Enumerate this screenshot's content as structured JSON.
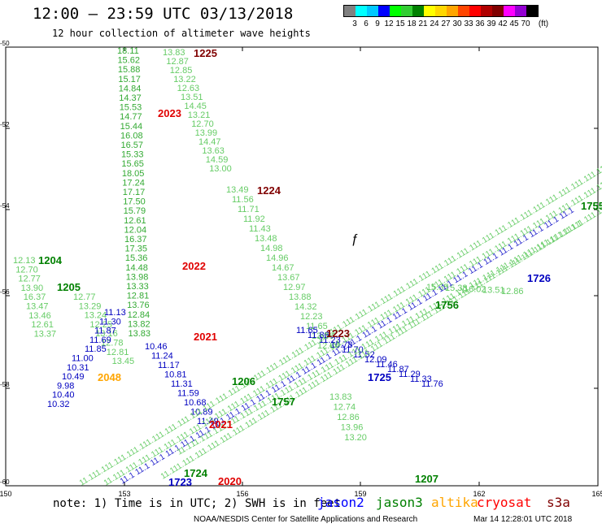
{
  "header": {
    "title": "12:00 – 23:59 UTC 03/13/2018",
    "subtitle": "12 hour collection of altimeter wave heights"
  },
  "legend": {
    "colors": [
      "#808080",
      "#00ffff",
      "#00c8ff",
      "#0000ff",
      "#00ff00",
      "#32cd32",
      "#008000",
      "#ffff00",
      "#ffd700",
      "#ffa500",
      "#ff4500",
      "#ff0000",
      "#b00000",
      "#800000",
      "#ff00ff",
      "#9400d3",
      "#000000"
    ],
    "labels": [
      "3",
      "6",
      "9",
      "12",
      "15",
      "18",
      "21",
      "24",
      "27",
      "30",
      "33",
      "36",
      "39",
      "42",
      "45",
      "70",
      "(ft)"
    ]
  },
  "axes": {
    "lat_labels": [
      "-50",
      "-52",
      "-54",
      "-56",
      "-58",
      "-60"
    ],
    "lon_labels": [
      "150",
      "153",
      "156",
      "159",
      "162",
      "165"
    ]
  },
  "tracks": [
    {
      "color": "#3a3",
      "values": [
        "18.11",
        "15.62",
        "15.88",
        "15.17",
        "14.84",
        "14.37",
        "15.53",
        "14.77",
        "15.44",
        "16.08",
        "16.57",
        "15.33",
        "15.65",
        "18.05",
        "17.24",
        "17.17",
        "17.50",
        "15.79",
        "12.61",
        "12.04",
        "16.37",
        "17.35",
        "15.36",
        "14.48",
        "13.98",
        "13.33",
        "12.81",
        "13.76",
        "12.84",
        "13.82",
        "13.83"
      ]
    },
    {
      "color": "#6c6",
      "values": [
        "13.83",
        "12.87",
        "12.85",
        "13.22",
        "12.63",
        "13.51",
        "14.45",
        "13.21",
        "12.70",
        "13.99",
        "14.47",
        "13.63",
        "14.59",
        "13.00"
      ]
    },
    {
      "color": "#6c6",
      "values": [
        "13.49",
        "11.56",
        "11.71",
        "11.92",
        "11.43",
        "13.48",
        "14.98",
        "14.96",
        "14.67",
        "13.67",
        "12.97",
        "13.88",
        "14.32",
        "12.23",
        "11.65",
        "13.36",
        "12.84"
      ]
    },
    {
      "color": "#6c6",
      "values": [
        "12.13",
        "12.70",
        "12.77",
        "13.90",
        "16.37",
        "13.47",
        "13.46",
        "12.61",
        "13.37"
      ]
    },
    {
      "color": "#6c6",
      "values": [
        "12.77",
        "13.29",
        "13.24",
        "12.25",
        "13.16",
        "12.78",
        "12.81",
        "13.45"
      ]
    },
    {
      "color": "#6c6",
      "values": [
        "13.83",
        "12.74",
        "12.86",
        "13.96",
        "13.20"
      ]
    },
    {
      "color": "#6c6",
      "values": [
        "15.35",
        "15.38",
        "16.02",
        "13.51",
        "12.86"
      ]
    }
  ],
  "blue_values": [
    "11.13",
    "11.30",
    "11.87",
    "11.69",
    "11.85",
    "11.00",
    "10.31",
    "10.49",
    "9.98",
    "10.40",
    "10.32",
    "10.46",
    "11.24",
    "11.17",
    "10.81",
    "11.31",
    "11.59",
    "10.68",
    "10.89",
    "11.49",
    "11.65",
    "11.86",
    "11.23",
    "10.78",
    "11.70",
    "11.52",
    "12.09",
    "11.46",
    "11.87",
    "11.29",
    "11.33",
    "11.76"
  ],
  "labels_time": [
    {
      "text": "1225",
      "color": "#800000"
    },
    {
      "text": "2023",
      "color": "#e00000"
    },
    {
      "text": "1224",
      "color": "#800000"
    },
    {
      "text": "1204",
      "color": "#008000"
    },
    {
      "text": "1205",
      "color": "#008000"
    },
    {
      "text": "2022",
      "color": "#e00000"
    },
    {
      "text": "2021",
      "color": "#e00000"
    },
    {
      "text": "2048",
      "color": "#ffa500"
    },
    {
      "text": "1223",
      "color": "#800000"
    },
    {
      "text": "1206",
      "color": "#008000"
    },
    {
      "text": "1757",
      "color": "#008000"
    },
    {
      "text": "1725",
      "color": "#0000c0"
    },
    {
      "text": "1726",
      "color": "#0000c0"
    },
    {
      "text": "1756",
      "color": "#008000"
    },
    {
      "text": "1755",
      "color": "#008000"
    },
    {
      "text": "2021",
      "color": "#e00000"
    },
    {
      "text": "2020",
      "color": "#e00000"
    },
    {
      "text": "1207",
      "color": "#008000"
    },
    {
      "text": "1724",
      "color": "#008000"
    },
    {
      "text": "1723",
      "color": "#0000c0"
    }
  ],
  "footer": {
    "note": "note: 1) Time is in UTC; 2) SWH is in feet",
    "missions": [
      {
        "name": "jason2",
        "color": "#0000ff"
      },
      {
        "name": "jason3",
        "color": "#008000"
      },
      {
        "name": "altika",
        "color": "#ffa500"
      },
      {
        "name": "cryosat",
        "color": "#ff0000"
      },
      {
        "name": "s3a",
        "color": "#800000"
      }
    ],
    "credit": "NOAA/NESDIS Center for Satellite Applications and Research",
    "timestamp": "Mar 14 12:28:01 UTC 2018"
  }
}
